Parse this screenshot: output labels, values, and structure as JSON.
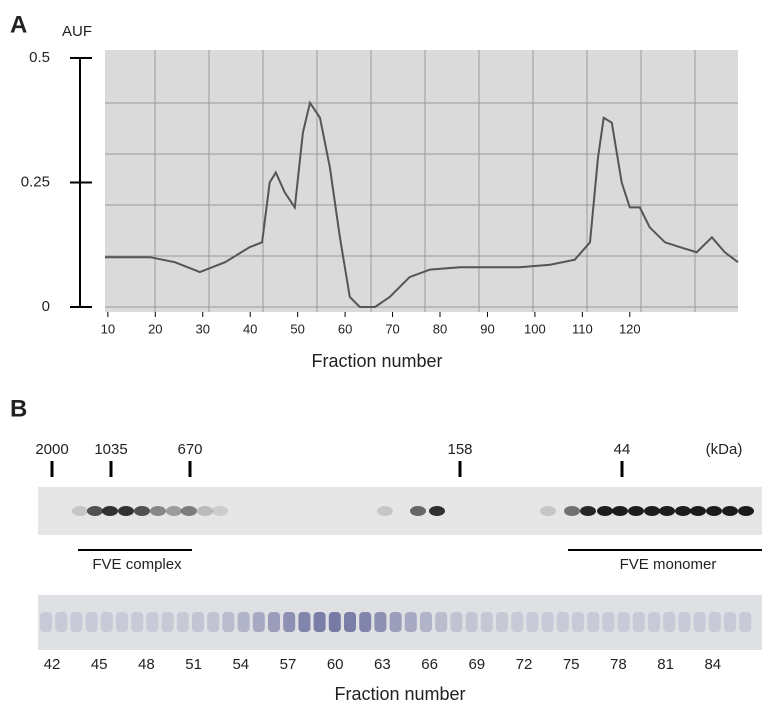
{
  "chart_data": {
    "type": "line",
    "panel_label": "A",
    "ylabel": "AUF",
    "xlabel": "Fraction number",
    "x": [
      9.4,
      14.6,
      18.9,
      24.1,
      29.4,
      34.7,
      39.9,
      42.5,
      44.1,
      45.4,
      47.3,
      49.4,
      51.1,
      52.6,
      54.7,
      56.8,
      58.9,
      61,
      63.1,
      66.3,
      69.4,
      73.6,
      77.9,
      84.2,
      90.5,
      96.8,
      103.2,
      108.4,
      111.6,
      113.3,
      114.5,
      116.2,
      118.3,
      120,
      122.1,
      124.2,
      127.4,
      130.6,
      134.1,
      137.3,
      140,
      142.8
    ],
    "values": [
      0.1,
      0.1,
      0.1,
      0.09,
      0.07,
      0.09,
      0.12,
      0.13,
      0.25,
      0.27,
      0.23,
      0.2,
      0.35,
      0.41,
      0.38,
      0.28,
      0.14,
      0.02,
      0,
      0,
      0.02,
      0.06,
      0.075,
      0.08,
      0.08,
      0.08,
      0.085,
      0.095,
      0.13,
      0.3,
      0.38,
      0.37,
      0.25,
      0.2,
      0.2,
      0.16,
      0.13,
      0.12,
      0.11,
      0.14,
      0.11,
      0.09
    ],
    "color": "#555555",
    "xlim": [
      9.4,
      142.8
    ],
    "ylim": [
      0,
      0.5
    ],
    "yticks": [
      0,
      0.25,
      0.5
    ],
    "xticks": [
      10,
      20,
      30,
      40,
      50,
      60,
      70,
      80,
      90,
      100,
      110,
      120
    ]
  },
  "panel_b": {
    "label": "B",
    "size_markers": [
      "2000",
      "1035",
      "670",
      "158",
      "44"
    ],
    "unit": "(kDa)",
    "complex_label": "FVE complex",
    "monomer_label": "FVE monomer",
    "fractions": [
      "42",
      "45",
      "48",
      "51",
      "54",
      "57",
      "60",
      "63",
      "66",
      "69",
      "72",
      "75",
      "78",
      "81",
      "84"
    ],
    "xlabel": "Fraction number"
  }
}
